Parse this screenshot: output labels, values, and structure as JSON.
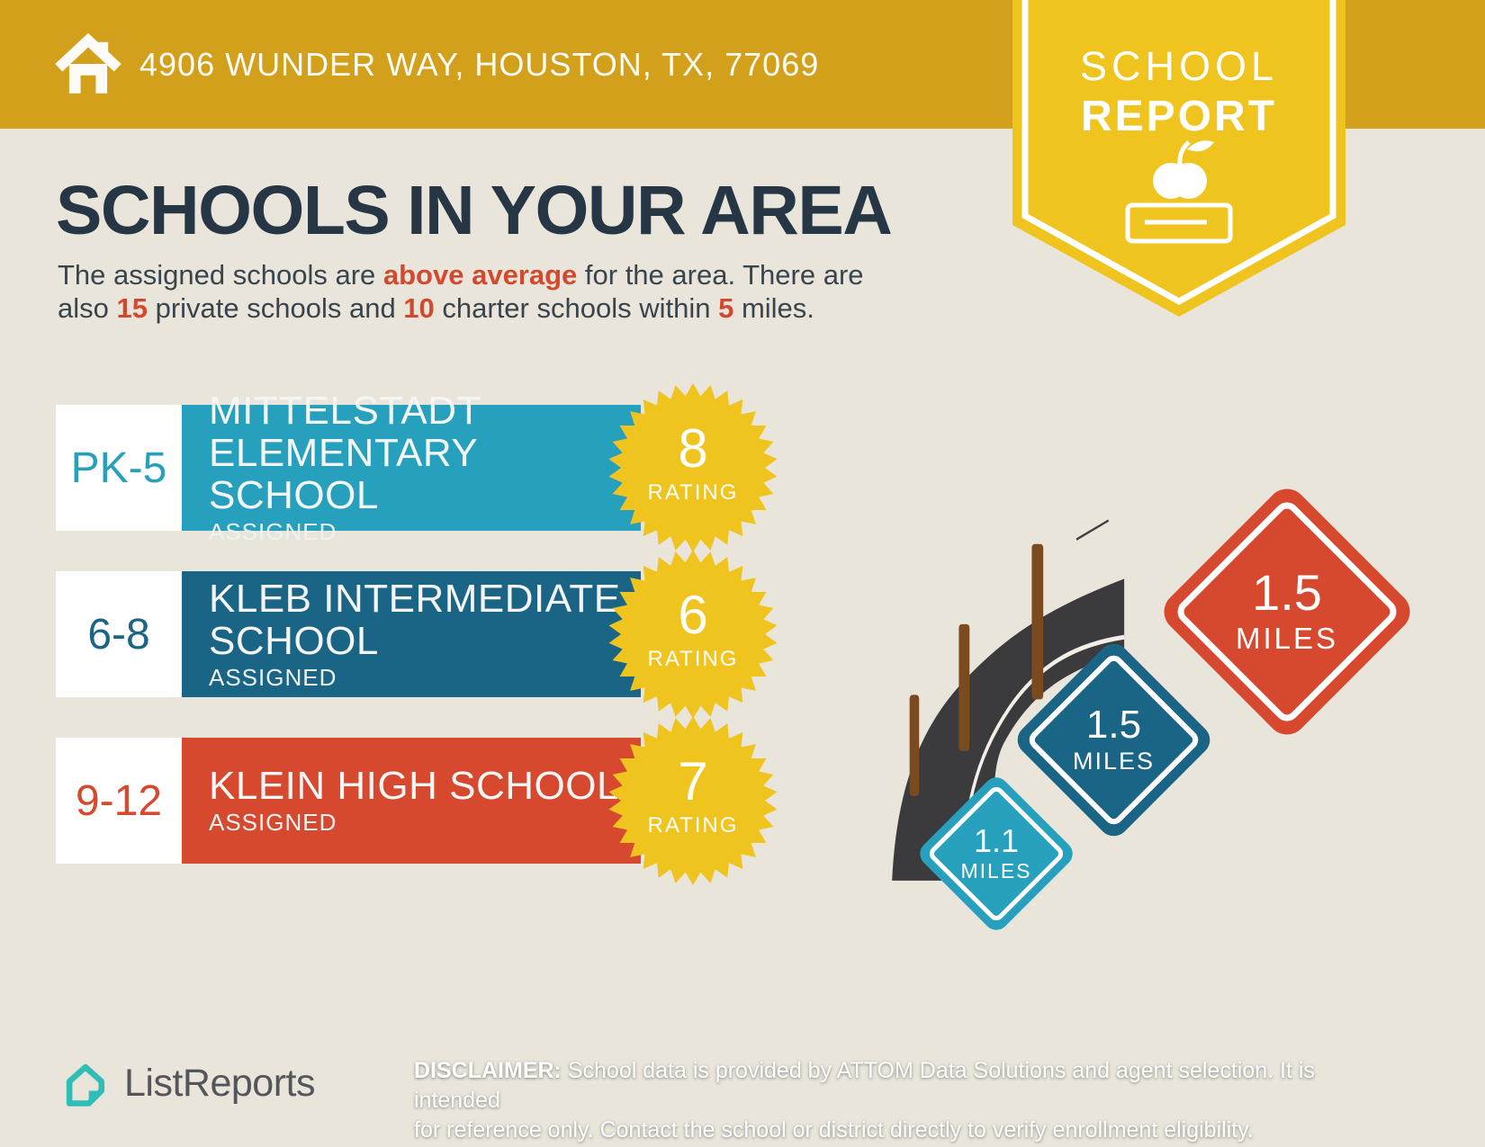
{
  "colors": {
    "background": "#E9E5DA",
    "header_gold": "#D3A01C",
    "badge_yellow": "#F0C41E",
    "teal": "#27A0BE",
    "dark_blue": "#1A6486",
    "red": "#D6492E",
    "title_navy": "#263645",
    "body_text": "#3A444D",
    "accent_red_text": "#D14A2F",
    "road_gray": "#3B3A3C",
    "post_brown": "#7B4A1F",
    "logo_teal": "#2EBEB7",
    "logo_gray": "#54565B"
  },
  "header": {
    "address": "4906 WUNDER WAY, HOUSTON, TX, 77069"
  },
  "badge": {
    "line1": "SCHOOL",
    "line2": "REPORT"
  },
  "intro": {
    "title": "SCHOOLS IN YOUR AREA",
    "l1a": "The assigned schools are ",
    "l1b": "above average",
    "l1c": " for the area. There are",
    "l2a": "also ",
    "l2b": "15",
    "l2c": " private schools and ",
    "l2d": "10",
    "l2e": " charter schools within ",
    "l2f": "5",
    "l2g": " miles."
  },
  "schools": [
    {
      "grades": "PK-5",
      "name1": "MITTELSTADT",
      "name2": "ELEMENTARY SCHOOL",
      "tag": "ASSIGNED",
      "rating": "8",
      "rating_label": "RATING"
    },
    {
      "grades": "6-8",
      "name1": "KLEB INTERMEDIATE",
      "name2": "SCHOOL",
      "tag": "ASSIGNED",
      "rating": "6",
      "rating_label": "RATING"
    },
    {
      "grades": "9-12",
      "name1": "KLEIN HIGH SCHOOL",
      "name2": "",
      "tag": "ASSIGNED",
      "rating": "7",
      "rating_label": "RATING"
    }
  ],
  "signs": [
    {
      "value": "1.1",
      "unit": "MILES"
    },
    {
      "value": "1.5",
      "unit": "MILES"
    },
    {
      "value": "1.5",
      "unit": "MILES"
    }
  ],
  "footer": {
    "brand": "ListReports",
    "disc_label": "DISCLAIMER:",
    "disc1": " School data is provided by ATTOM Data Solutions and agent selection. It is intended",
    "disc2": "for reference only. Contact the school or district directly to verify enrollment eligibility."
  }
}
